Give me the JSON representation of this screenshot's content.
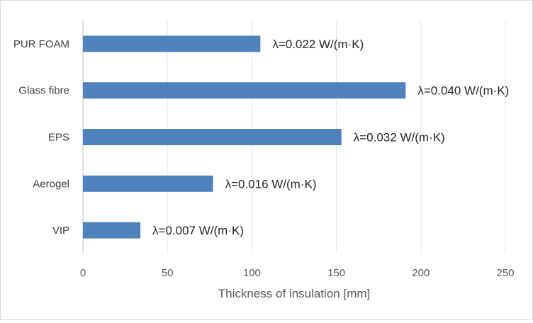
{
  "chart_data": {
    "type": "bar",
    "orientation": "horizontal",
    "categories": [
      "PUR FOAM",
      "Glass fibre",
      "EPS",
      "Aerogel",
      "VIP"
    ],
    "values": [
      105,
      191,
      153,
      77,
      34
    ],
    "data_labels": [
      "λ=0.022 W/(m·K)",
      "λ=0.040 W/(m·K)",
      "λ=0.032 W/(m·K)",
      "λ=0.016 W/(m·K)",
      "λ=0.007 W/(m·K)"
    ],
    "xlabel": "Thickness of insulation [mm]",
    "ylabel": "",
    "title": "",
    "xlim": [
      0,
      250
    ],
    "x_ticks": [
      0,
      50,
      100,
      150,
      200,
      250
    ],
    "grid": "vertical",
    "legend": "none",
    "bar_color": "#4f81bd"
  }
}
